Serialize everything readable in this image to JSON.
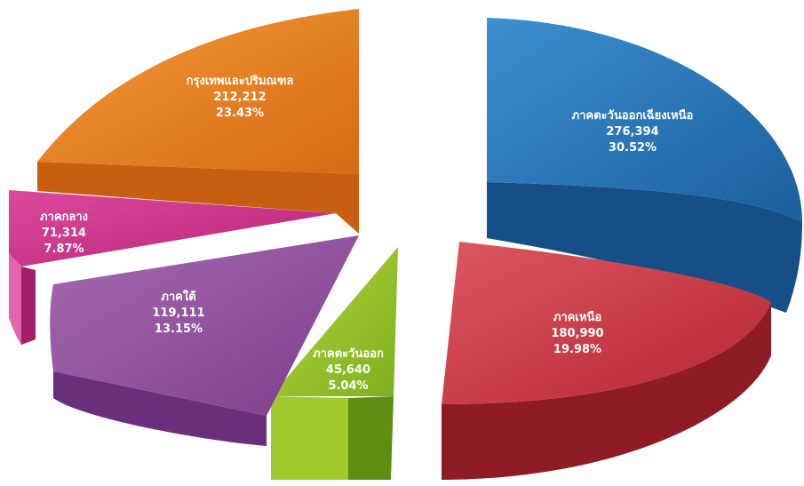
{
  "chart_data": {
    "type": "pie",
    "title": "",
    "legend": "none",
    "slices": [
      {
        "label": "ภาคตะวันออกเฉียงเหนือ",
        "value_text": "276,394",
        "percent_text": "30.52%",
        "value": 276394,
        "percent": 30.52,
        "color": "#1f6fb0"
      },
      {
        "label": "ภาคเหนือ",
        "value_text": "180,990",
        "percent_text": "19.98%",
        "value": 180990,
        "percent": 19.98,
        "color": "#c8313d"
      },
      {
        "label": "ภาคตะวันออก",
        "value_text": "45,640",
        "percent_text": "5.04%",
        "value": 45640,
        "percent": 5.04,
        "color": "#8cbf26"
      },
      {
        "label": "ภาคใต้",
        "value_text": "119,111",
        "percent_text": "13.15%",
        "value": 119111,
        "percent": 13.15,
        "color": "#8e4a9a"
      },
      {
        "label": "ภาคกลาง",
        "value_text": "71,314",
        "percent_text": "7.87%",
        "value": 71314,
        "percent": 7.87,
        "color": "#cc2f8a"
      },
      {
        "label": "กรุงเทพและปริมณฑล",
        "value_text": "212,212",
        "percent_text": "23.43%",
        "value": 212212,
        "percent": 23.43,
        "color": "#e37b1f"
      }
    ]
  }
}
